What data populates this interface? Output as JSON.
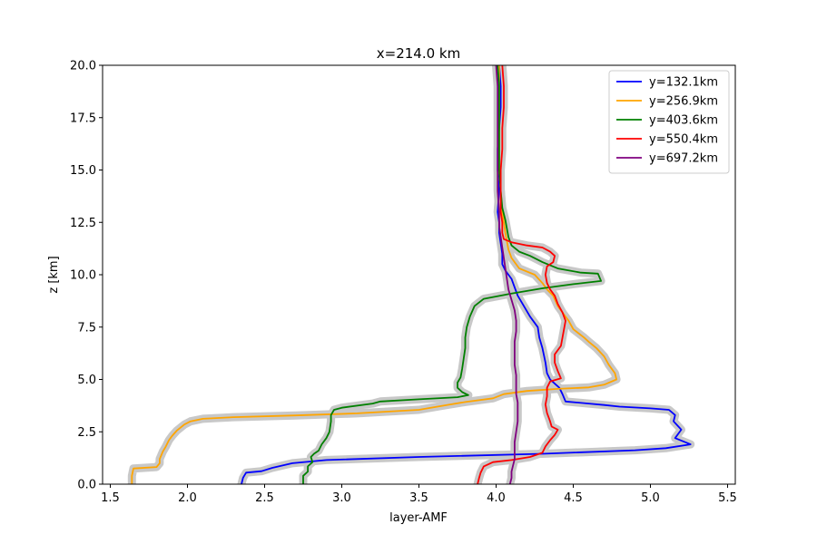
{
  "chart_data": {
    "type": "line",
    "title": "x=214.0 km",
    "xlabel": "layer-AMF",
    "ylabel": "z [km]",
    "xlim": [
      1.45,
      5.55
    ],
    "ylim": [
      0,
      20
    ],
    "xticks": [
      "1.5",
      "2.0",
      "2.5",
      "3.0",
      "3.5",
      "4.0",
      "4.5",
      "5.0",
      "5.5"
    ],
    "xtick_values": [
      1.5,
      2.0,
      2.5,
      3.0,
      3.5,
      4.0,
      4.5,
      5.0,
      5.5
    ],
    "yticks": [
      "0.0",
      "2.5",
      "5.0",
      "7.5",
      "10.0",
      "12.5",
      "15.0",
      "17.5",
      "20.0"
    ],
    "ytick_values": [
      0,
      2.5,
      5.0,
      7.5,
      10.0,
      12.5,
      15.0,
      17.5,
      20.0
    ],
    "grid": false,
    "legend_position": "top-right",
    "band_color": "#c8c8c8",
    "series": [
      {
        "name": "y=132.1km",
        "color": "#0000ff",
        "points": [
          [
            2.35,
            0
          ],
          [
            2.36,
            0.3
          ],
          [
            2.38,
            0.55
          ],
          [
            2.48,
            0.62
          ],
          [
            2.55,
            0.78
          ],
          [
            2.68,
            1.0
          ],
          [
            2.9,
            1.15
          ],
          [
            3.5,
            1.3
          ],
          [
            4.3,
            1.45
          ],
          [
            4.9,
            1.62
          ],
          [
            5.1,
            1.72
          ],
          [
            5.26,
            1.9
          ],
          [
            5.16,
            2.2
          ],
          [
            5.2,
            2.6
          ],
          [
            5.15,
            3.0
          ],
          [
            5.16,
            3.3
          ],
          [
            5.12,
            3.55
          ],
          [
            5.0,
            3.62
          ],
          [
            4.8,
            3.7
          ],
          [
            4.7,
            3.78
          ],
          [
            4.6,
            3.85
          ],
          [
            4.45,
            3.95
          ],
          [
            4.43,
            4.3
          ],
          [
            4.41,
            4.6
          ],
          [
            4.35,
            5.0
          ],
          [
            4.33,
            5.3
          ],
          [
            4.32,
            5.8
          ],
          [
            4.3,
            6.5
          ],
          [
            4.28,
            7.0
          ],
          [
            4.27,
            7.5
          ],
          [
            4.22,
            8.0
          ],
          [
            4.18,
            8.5
          ],
          [
            4.14,
            9.0
          ],
          [
            4.12,
            9.4
          ],
          [
            4.1,
            9.8
          ],
          [
            4.06,
            10.2
          ],
          [
            4.04,
            10.5
          ],
          [
            4.04,
            11.0
          ],
          [
            4.03,
            11.5
          ],
          [
            4.02,
            12.0
          ],
          [
            4.02,
            12.5
          ],
          [
            4.01,
            13.0
          ],
          [
            4.02,
            14.0
          ],
          [
            4.01,
            15.0
          ],
          [
            4.01,
            16.0
          ],
          [
            4.02,
            17.0
          ],
          [
            4.03,
            18.0
          ],
          [
            4.03,
            19.0
          ],
          [
            4.02,
            20.0
          ]
        ]
      },
      {
        "name": "y=256.9km",
        "color": "#ffa500",
        "points": [
          [
            1.64,
            0
          ],
          [
            1.64,
            0.4
          ],
          [
            1.65,
            0.75
          ],
          [
            1.8,
            0.82
          ],
          [
            1.82,
            1.0
          ],
          [
            1.82,
            1.2
          ],
          [
            1.84,
            1.55
          ],
          [
            1.86,
            1.8
          ],
          [
            1.88,
            2.1
          ],
          [
            1.9,
            2.3
          ],
          [
            1.93,
            2.55
          ],
          [
            1.98,
            2.85
          ],
          [
            2.02,
            3.0
          ],
          [
            2.1,
            3.12
          ],
          [
            2.3,
            3.2
          ],
          [
            2.7,
            3.28
          ],
          [
            3.1,
            3.38
          ],
          [
            3.5,
            3.55
          ],
          [
            3.68,
            3.78
          ],
          [
            3.8,
            3.92
          ],
          [
            3.98,
            4.1
          ],
          [
            4.05,
            4.3
          ],
          [
            4.2,
            4.45
          ],
          [
            4.4,
            4.55
          ],
          [
            4.6,
            4.62
          ],
          [
            4.7,
            4.75
          ],
          [
            4.78,
            5.0
          ],
          [
            4.77,
            5.3
          ],
          [
            4.73,
            5.7
          ],
          [
            4.7,
            6.1
          ],
          [
            4.65,
            6.5
          ],
          [
            4.6,
            6.8
          ],
          [
            4.57,
            7.0
          ],
          [
            4.5,
            7.4
          ],
          [
            4.47,
            7.8
          ],
          [
            4.43,
            8.2
          ],
          [
            4.4,
            8.5
          ],
          [
            4.37,
            9.0
          ],
          [
            4.33,
            9.3
          ],
          [
            4.3,
            9.6
          ],
          [
            4.25,
            10.0
          ],
          [
            4.15,
            10.3
          ],
          [
            4.1,
            10.8
          ],
          [
            4.08,
            11.2
          ],
          [
            4.07,
            11.6
          ],
          [
            4.06,
            12.0
          ],
          [
            4.05,
            12.5
          ],
          [
            4.04,
            13.0
          ],
          [
            4.03,
            14.0
          ],
          [
            4.02,
            15.0
          ],
          [
            4.02,
            16.0
          ],
          [
            4.02,
            17.0
          ],
          [
            4.02,
            18.0
          ],
          [
            4.02,
            19.0
          ],
          [
            4.02,
            20.0
          ]
        ]
      },
      {
        "name": "y=403.6km",
        "color": "#008000",
        "points": [
          [
            2.75,
            0
          ],
          [
            2.75,
            0.4
          ],
          [
            2.78,
            0.6
          ],
          [
            2.78,
            0.85
          ],
          [
            2.81,
            1.05
          ],
          [
            2.8,
            1.3
          ],
          [
            2.82,
            1.45
          ],
          [
            2.85,
            1.6
          ],
          [
            2.87,
            1.9
          ],
          [
            2.9,
            2.2
          ],
          [
            2.92,
            2.5
          ],
          [
            2.93,
            3.0
          ],
          [
            2.93,
            3.3
          ],
          [
            2.95,
            3.55
          ],
          [
            3.0,
            3.65
          ],
          [
            3.2,
            3.85
          ],
          [
            3.25,
            3.95
          ],
          [
            3.5,
            4.05
          ],
          [
            3.75,
            4.15
          ],
          [
            3.82,
            4.25
          ],
          [
            3.78,
            4.4
          ],
          [
            3.75,
            4.6
          ],
          [
            3.75,
            4.85
          ],
          [
            3.77,
            5.1
          ],
          [
            3.78,
            5.5
          ],
          [
            3.79,
            6.0
          ],
          [
            3.8,
            6.5
          ],
          [
            3.8,
            7.0
          ],
          [
            3.81,
            7.5
          ],
          [
            3.83,
            8.0
          ],
          [
            3.86,
            8.5
          ],
          [
            3.92,
            8.85
          ],
          [
            4.1,
            9.1
          ],
          [
            4.3,
            9.35
          ],
          [
            4.5,
            9.55
          ],
          [
            4.68,
            9.7
          ],
          [
            4.66,
            10.05
          ],
          [
            4.55,
            10.1
          ],
          [
            4.4,
            10.3
          ],
          [
            4.3,
            10.6
          ],
          [
            4.22,
            10.9
          ],
          [
            4.15,
            11.1
          ],
          [
            4.1,
            11.4
          ],
          [
            4.08,
            11.8
          ],
          [
            4.07,
            12.2
          ],
          [
            4.06,
            12.6
          ],
          [
            4.04,
            13.2
          ],
          [
            4.03,
            14.0
          ],
          [
            4.02,
            15.0
          ],
          [
            4.02,
            16.0
          ],
          [
            4.02,
            17.0
          ],
          [
            4.02,
            18.0
          ],
          [
            4.02,
            19.0
          ],
          [
            4.01,
            20.0
          ]
        ]
      },
      {
        "name": "y=550.4km",
        "color": "#ff0000",
        "points": [
          [
            3.88,
            0
          ],
          [
            3.89,
            0.3
          ],
          [
            3.9,
            0.55
          ],
          [
            3.92,
            0.85
          ],
          [
            3.98,
            1.05
          ],
          [
            4.1,
            1.15
          ],
          [
            4.22,
            1.3
          ],
          [
            4.3,
            1.5
          ],
          [
            4.32,
            1.8
          ],
          [
            4.35,
            2.1
          ],
          [
            4.38,
            2.35
          ],
          [
            4.4,
            2.6
          ],
          [
            4.36,
            2.75
          ],
          [
            4.35,
            3.0
          ],
          [
            4.33,
            3.4
          ],
          [
            4.32,
            3.8
          ],
          [
            4.33,
            4.2
          ],
          [
            4.33,
            4.6
          ],
          [
            4.35,
            4.9
          ],
          [
            4.42,
            5.05
          ],
          [
            4.4,
            5.4
          ],
          [
            4.38,
            5.8
          ],
          [
            4.38,
            6.2
          ],
          [
            4.42,
            6.6
          ],
          [
            4.43,
            7.0
          ],
          [
            4.44,
            7.4
          ],
          [
            4.45,
            7.8
          ],
          [
            4.43,
            8.2
          ],
          [
            4.4,
            8.6
          ],
          [
            4.38,
            9.0
          ],
          [
            4.35,
            9.3
          ],
          [
            4.33,
            9.6
          ],
          [
            4.32,
            10.0
          ],
          [
            4.33,
            10.4
          ],
          [
            4.37,
            10.6
          ],
          [
            4.38,
            10.9
          ],
          [
            4.35,
            11.1
          ],
          [
            4.3,
            11.3
          ],
          [
            4.2,
            11.4
          ],
          [
            4.1,
            11.55
          ],
          [
            4.05,
            11.7
          ],
          [
            4.04,
            12.0
          ],
          [
            4.04,
            12.5
          ],
          [
            4.03,
            13.0
          ],
          [
            4.03,
            14.0
          ],
          [
            4.03,
            15.0
          ],
          [
            4.04,
            16.0
          ],
          [
            4.04,
            17.0
          ],
          [
            4.05,
            18.0
          ],
          [
            4.05,
            19.0
          ],
          [
            4.04,
            20.0
          ]
        ]
      },
      {
        "name": "y=697.2km",
        "color": "#800080",
        "points": [
          [
            4.09,
            0
          ],
          [
            4.1,
            0.3
          ],
          [
            4.1,
            0.6
          ],
          [
            4.11,
            0.9
          ],
          [
            4.12,
            1.2
          ],
          [
            4.12,
            1.6
          ],
          [
            4.12,
            2.0
          ],
          [
            4.13,
            2.5
          ],
          [
            4.14,
            3.0
          ],
          [
            4.14,
            3.5
          ],
          [
            4.14,
            3.9
          ],
          [
            4.13,
            4.3
          ],
          [
            4.13,
            4.7
          ],
          [
            4.13,
            5.2
          ],
          [
            4.12,
            5.7
          ],
          [
            4.12,
            6.2
          ],
          [
            4.12,
            6.8
          ],
          [
            4.13,
            7.3
          ],
          [
            4.13,
            7.8
          ],
          [
            4.12,
            8.3
          ],
          [
            4.1,
            8.8
          ],
          [
            4.08,
            9.3
          ],
          [
            4.07,
            9.8
          ],
          [
            4.06,
            10.3
          ],
          [
            4.05,
            10.8
          ],
          [
            4.04,
            11.3
          ],
          [
            4.03,
            11.8
          ],
          [
            4.02,
            12.3
          ],
          [
            4.02,
            13.0
          ],
          [
            4.01,
            14.0
          ],
          [
            4.01,
            15.0
          ],
          [
            4.01,
            16.0
          ],
          [
            4.01,
            17.0
          ],
          [
            4.01,
            18.0
          ],
          [
            4.01,
            19.0
          ],
          [
            4.0,
            20.0
          ]
        ]
      }
    ]
  }
}
